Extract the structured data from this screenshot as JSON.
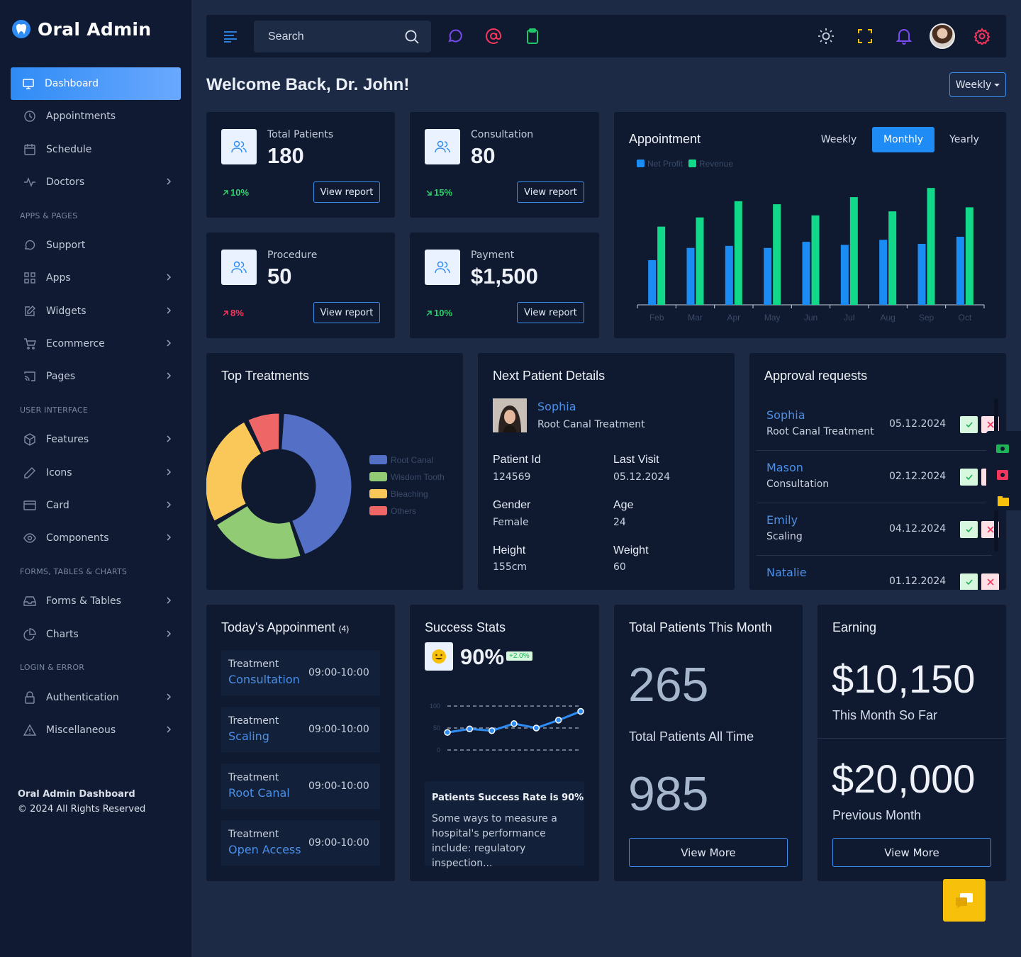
{
  "brand": {
    "name": "Oral Admin"
  },
  "sidebar": {
    "items": [
      {
        "label": "Dashboard"
      },
      {
        "label": "Appointments"
      },
      {
        "label": "Schedule"
      },
      {
        "label": "Doctors"
      },
      {
        "label": "Support"
      },
      {
        "label": "Apps"
      },
      {
        "label": "Widgets"
      },
      {
        "label": "Ecommerce"
      },
      {
        "label": "Pages"
      },
      {
        "label": "Features"
      },
      {
        "label": "Icons"
      },
      {
        "label": "Card"
      },
      {
        "label": "Components"
      },
      {
        "label": "Forms & Tables"
      },
      {
        "label": "Charts"
      },
      {
        "label": "Authentication"
      },
      {
        "label": "Miscellaneous"
      }
    ],
    "sections": [
      "APPS & PAGES",
      "USER INTERFACE",
      "FORMS, TABLES & CHARTS",
      "LOGIN & ERROR"
    ],
    "footer": {
      "title": "Oral Admin Dashboard",
      "copyright": "© 2024 All Rights Reserved"
    }
  },
  "topbar": {
    "search_placeholder": "Search"
  },
  "page": {
    "welcome": "Welcome Back, Dr. John!",
    "period": "Weekly"
  },
  "stats": [
    {
      "label": "Total Patients",
      "value": "180",
      "trend": "10%",
      "direction": "up",
      "color": "#2fd06b",
      "button": "View report"
    },
    {
      "label": "Consultation",
      "value": "80",
      "trend": "15%",
      "direction": "down",
      "color": "#2fd06b",
      "button": "View report"
    },
    {
      "label": "Procedure",
      "value": "50",
      "trend": "8%",
      "direction": "up",
      "color": "#f5365c",
      "button": "View report"
    },
    {
      "label": "Payment",
      "value": "$1,500",
      "trend": "10%",
      "direction": "up",
      "color": "#2fd06b",
      "button": "View report"
    }
  ],
  "appointment": {
    "title": "Appointment",
    "tabs": [
      {
        "label": "Weekly"
      },
      {
        "label": "Monthly",
        "active": true
      },
      {
        "label": "Yearly"
      }
    ]
  },
  "chart_data": {
    "type": "bar",
    "categories": [
      "Feb",
      "Mar",
      "Apr",
      "May",
      "Jun",
      "Jul",
      "Aug",
      "Sep",
      "Oct"
    ],
    "series": [
      {
        "name": "Net Profit",
        "color": "#1c8cf5",
        "values": [
          44,
          56,
          58,
          56,
          62,
          59,
          64,
          60,
          67
        ]
      },
      {
        "name": "Revenue",
        "color": "#12d98a",
        "values": [
          77,
          86,
          102,
          99,
          88,
          106,
          92,
          115,
          96
        ]
      }
    ],
    "ylim": [
      0,
      120
    ],
    "legend": "top-left"
  },
  "treatments": {
    "title": "Top Treatments",
    "items": [
      {
        "name": "Root Canal",
        "value": 44,
        "color": "#5470c6"
      },
      {
        "name": "Wisdom Tooth",
        "value": 22,
        "color": "#91cc75"
      },
      {
        "name": "Bleaching",
        "value": 26,
        "color": "#fac858"
      },
      {
        "name": "Others",
        "value": 8,
        "color": "#ee6666"
      }
    ]
  },
  "next_patient": {
    "title": "Next Patient Details",
    "name": "Sophia",
    "treatment": "Root Canal Treatment",
    "fields": [
      {
        "label": "Patient Id",
        "value": "124569"
      },
      {
        "label": "Last Visit",
        "value": "05.12.2024"
      },
      {
        "label": "Gender",
        "value": "Female"
      },
      {
        "label": "Age",
        "value": "24"
      },
      {
        "label": "Height",
        "value": "155cm"
      },
      {
        "label": "Weight",
        "value": "60"
      }
    ]
  },
  "approvals": {
    "title": "Approval requests",
    "items": [
      {
        "name": "Sophia",
        "treatment": "Root Canal Treatment",
        "date": "05.12.2024"
      },
      {
        "name": "Mason",
        "treatment": "Consultation",
        "date": "02.12.2024"
      },
      {
        "name": "Emily",
        "treatment": "Scaling",
        "date": "04.12.2024"
      },
      {
        "name": "Natalie",
        "treatment": "",
        "date": "01.12.2024"
      }
    ]
  },
  "today": {
    "title": "Today's Appoinment",
    "count": "(4)",
    "items": [
      {
        "label": "Treatment",
        "name": "Consultation",
        "time": "09:00-10:00"
      },
      {
        "label": "Treatment",
        "name": "Scaling",
        "time": "09:00-10:00"
      },
      {
        "label": "Treatment",
        "name": "Root Canal",
        "time": "09:00-10:00"
      },
      {
        "label": "Treatment",
        "name": "Open Access",
        "time": "09:00-10:00"
      }
    ]
  },
  "success": {
    "title": "Success Stats",
    "value": "90%",
    "badge": "+2.0%",
    "spark_y": [
      40,
      48,
      44,
      60,
      50,
      68,
      88
    ],
    "ticks": [
      "100",
      "50",
      "0"
    ],
    "note_title": "Patients Success Rate is 90%",
    "note_text": "Some ways to measure a hospital's performance include: regulatory inspection..."
  },
  "patients_month": {
    "title": "Total Patients This Month",
    "value": "265",
    "all_time_label": "Total Patients All Time",
    "all_time_value": "985",
    "button": "View More"
  },
  "earning": {
    "title": "Earning",
    "this_month": "$10,150",
    "this_month_label": "This Month So Far",
    "previous": "$20,000",
    "previous_label": "Previous Month",
    "button": "View More"
  }
}
